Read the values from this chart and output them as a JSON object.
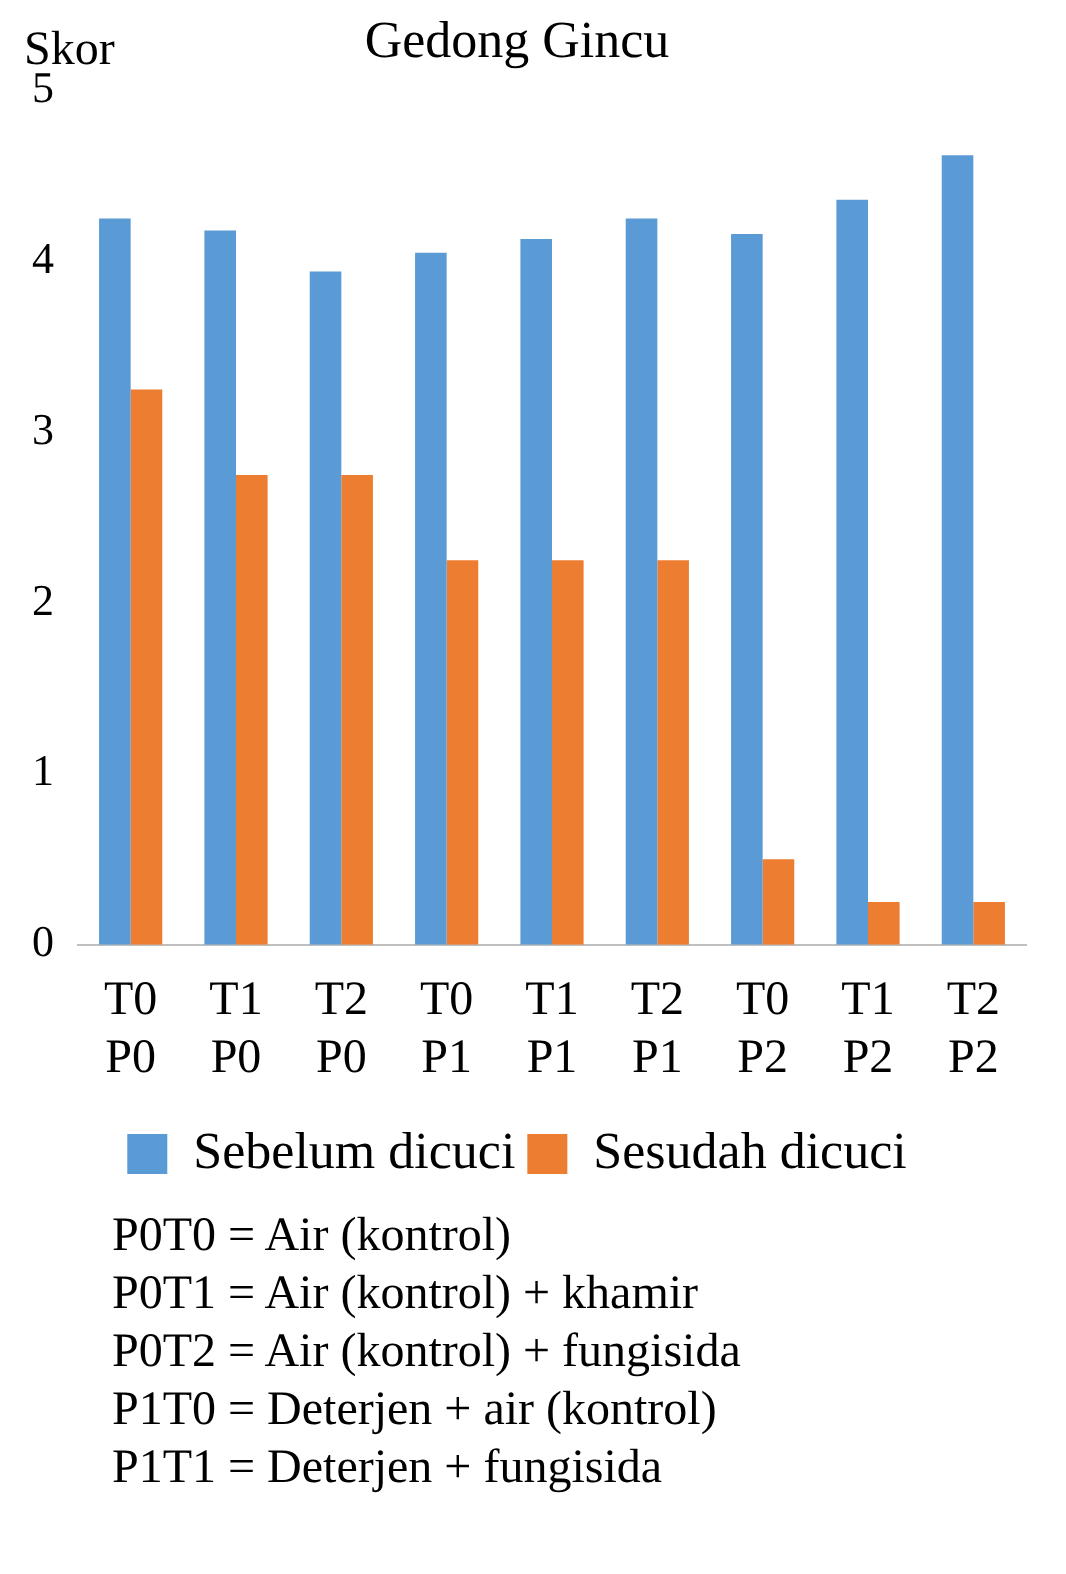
{
  "chart_data": {
    "type": "bar",
    "title": "Gedong Gincu",
    "ylabel": "Skor",
    "categories": [
      "T0\nP0",
      "T1\nP0",
      "T2\nP0",
      "T0\nP1",
      "T1\nP1",
      "T2\nP1",
      "T0\nP2",
      "T1\nP2",
      "T2\nP2"
    ],
    "series": [
      {
        "name": "Sebelum dicuci",
        "color": "#5b9bd5",
        "values": [
          4.25,
          4.18,
          3.94,
          4.05,
          4.13,
          4.25,
          4.16,
          4.36,
          4.62
        ]
      },
      {
        "name": "Sesudah dicuci",
        "color": "#ed7d31",
        "values": [
          3.25,
          2.75,
          2.75,
          2.25,
          2.25,
          2.25,
          0.5,
          0.25,
          0.25
        ]
      }
    ],
    "ylim": [
      0,
      5
    ],
    "yticks": [
      0,
      1,
      2,
      3,
      4,
      5
    ],
    "grid": false,
    "legend": "bottom",
    "annotations": [
      "P0T0 = Air (kontrol)",
      "P0T1 = Air (kontrol) + khamir",
      "P0T2 = Air (kontrol) + fungisida",
      "P1T0 = Deterjen + air (kontrol)",
      "P1T1 = Deterjen + fungisida"
    ]
  }
}
